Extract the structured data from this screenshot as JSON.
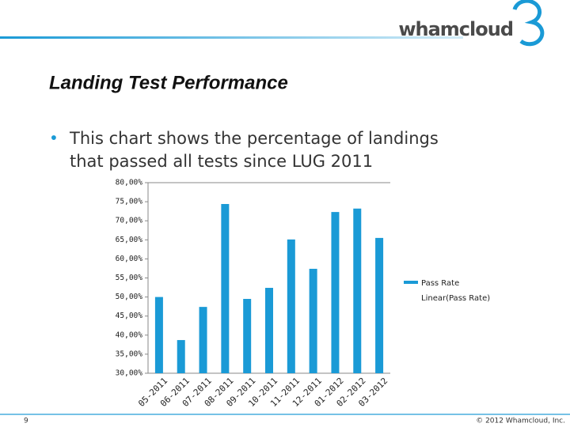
{
  "logo_text": "whamcloud",
  "title": "Landing Test Performance",
  "bullet_lines": [
    "This chart shows the percentage of landings",
    "that passed all tests since LUG 2011"
  ],
  "page_number": "9",
  "footer": "© 2012 Whamcloud, Inc.",
  "chart_data": {
    "type": "bar",
    "categories": [
      "05-2011",
      "06-2011",
      "07-2011",
      "08-2011",
      "09-2011",
      "10-2011",
      "11-2011",
      "12-2011",
      "01-2012",
      "02-2012",
      "03-2012"
    ],
    "series": [
      {
        "name": "Pass Rate",
        "color": "#1a9ad6",
        "values": [
          50.0,
          38.7,
          47.4,
          74.4,
          49.5,
          52.4,
          65.1,
          57.4,
          72.3,
          73.2,
          65.5
        ]
      }
    ],
    "trendline": {
      "name": "Linear(Pass Rate)"
    },
    "ylim": [
      30,
      80
    ],
    "yticks": [
      {
        "value": 30,
        "label": "30,00%"
      },
      {
        "value": 35,
        "label": "35,00%"
      },
      {
        "value": 40,
        "label": "40,00%"
      },
      {
        "value": 45,
        "label": "45,00%"
      },
      {
        "value": 50,
        "label": "50,00%"
      },
      {
        "value": 55,
        "label": "55,00%"
      },
      {
        "value": 60,
        "label": "60,00%"
      },
      {
        "value": 65,
        "label": "65,00%"
      },
      {
        "value": 70,
        "label": "70,00%"
      },
      {
        "value": 75,
        "label": "75,00%"
      },
      {
        "value": 80,
        "label": "80,00%"
      }
    ],
    "grid": false,
    "legend": "right"
  }
}
